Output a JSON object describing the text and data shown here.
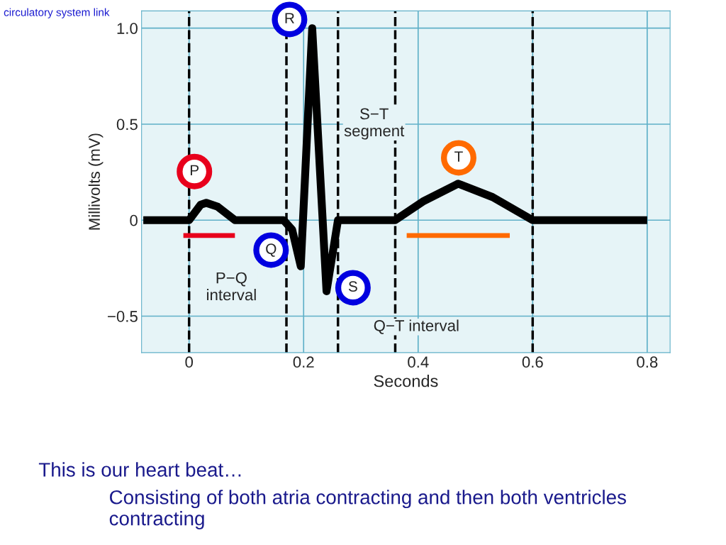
{
  "chart_data": {
    "type": "line",
    "xlabel": "Seconds",
    "ylabel": "Millivolts (mV)",
    "series": [
      {
        "color": "#000000",
        "x": [
          -0.08,
          0.0,
          0.02,
          0.03,
          0.05,
          0.08,
          0.165,
          0.18,
          0.195,
          0.215,
          0.24,
          0.26,
          0.36,
          0.41,
          0.47,
          0.53,
          0.6,
          0.8
        ],
        "values": [
          0,
          0,
          0.08,
          0.09,
          0.07,
          0,
          0,
          -0.05,
          -0.24,
          1.0,
          -0.37,
          0,
          0,
          0.1,
          0.19,
          0.12,
          0,
          0
        ]
      },
      {
        "color": "#e8001c",
        "x": [
          -0.01,
          0.08
        ],
        "values": [
          -0.08,
          -0.08
        ]
      },
      {
        "color": "#ff6a00",
        "x": [
          0.38,
          0.56
        ],
        "values": [
          -0.08,
          -0.08
        ]
      }
    ],
    "xlim": [
      -0.083,
      0.84
    ],
    "ylim": [
      -0.69,
      1.09
    ],
    "xticks": [
      0,
      0.2,
      0.4,
      0.6,
      0.8
    ],
    "yticks": [
      {
        "value": -0.5,
        "label": "−0.5"
      },
      0,
      0.5,
      {
        "value": 1.0,
        "label": "1.0"
      }
    ],
    "grid": true,
    "line_style": "solid",
    "marker": "none",
    "ref_lines": [
      {
        "axis": "x",
        "value": 0,
        "color": "#000000",
        "line_style": "dashed"
      },
      {
        "axis": "x",
        "value": 0.17,
        "color": "#000000",
        "line_style": "dashed"
      },
      {
        "axis": "x",
        "value": 0.26,
        "color": "#000000",
        "line_style": "dashed"
      },
      {
        "axis": "x",
        "value": 0.36,
        "color": "#000000",
        "line_style": "dashed"
      },
      {
        "axis": "x",
        "value": 0.6,
        "color": "#000000",
        "line_style": "dashed"
      }
    ],
    "annotations": [
      "P",
      "R",
      "Q",
      "S",
      "T",
      "S−T\nsegment",
      "P−Q\ninterval",
      "Q−T interval",
      "circulatory system link",
      "This is our heart beat…",
      "Consisting of both atria contracting and then both ventricles contracting"
    ]
  }
}
